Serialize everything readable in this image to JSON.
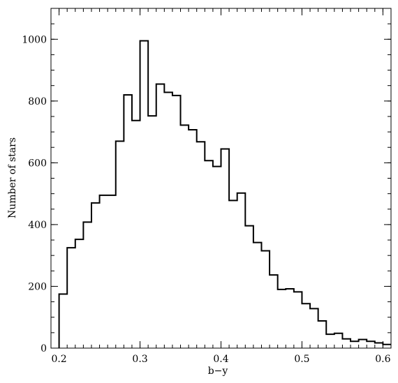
{
  "chart_data": {
    "type": "bar",
    "title": "",
    "xlabel": "b−y",
    "ylabel": "Number of stars",
    "xlim": [
      0.19,
      0.61
    ],
    "ylim": [
      0,
      1100
    ],
    "xticks": [
      0.2,
      0.3,
      0.4,
      0.5,
      0.6
    ],
    "xtick_labels": [
      "0.2",
      "0.3",
      "0.4",
      "0.5",
      "0.6"
    ],
    "xminor_step": 0.01,
    "yticks": [
      0,
      200,
      400,
      600,
      800,
      1000
    ],
    "ytick_labels": [
      "0",
      "200",
      "400",
      "600",
      "800",
      "1000"
    ],
    "yminor_step": 50,
    "grid": false,
    "bin_width": 0.01,
    "bin_left_edges": [
      0.2,
      0.21,
      0.22,
      0.23,
      0.24,
      0.25,
      0.26,
      0.27,
      0.28,
      0.29,
      0.3,
      0.31,
      0.32,
      0.33,
      0.34,
      0.35,
      0.36,
      0.37,
      0.38,
      0.39,
      0.4,
      0.41,
      0.42,
      0.43,
      0.44,
      0.45,
      0.46,
      0.47,
      0.48,
      0.49,
      0.5,
      0.51,
      0.52,
      0.53,
      0.54,
      0.55,
      0.56,
      0.57,
      0.58,
      0.59,
      0.6
    ],
    "values": [
      175,
      325,
      352,
      408,
      470,
      495,
      495,
      670,
      820,
      737,
      995,
      752,
      855,
      828,
      818,
      722,
      707,
      668,
      607,
      588,
      645,
      478,
      502,
      396,
      342,
      315,
      237,
      190,
      192,
      182,
      144,
      128,
      88,
      45,
      48,
      30,
      22,
      28,
      22,
      17,
      12
    ]
  }
}
